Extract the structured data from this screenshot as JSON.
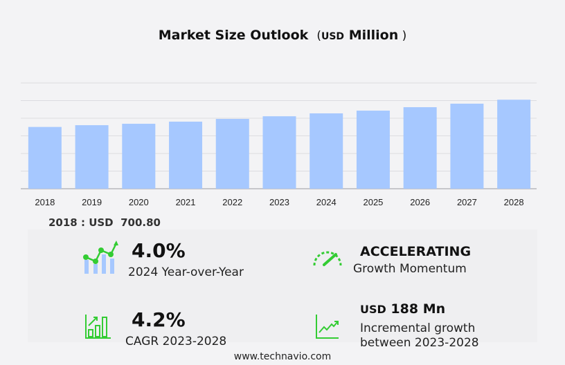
{
  "chart_data": {
    "type": "bar",
    "title": "Market Size Outlook",
    "unit_prefix": "USD",
    "unit": "Million",
    "categories": [
      "2018",
      "2019",
      "2020",
      "2021",
      "2022",
      "2023",
      "2024",
      "2025",
      "2026",
      "2027",
      "2028"
    ],
    "values": [
      700.8,
      721,
      737,
      761,
      792,
      822,
      855,
      886,
      925,
      965,
      1010
    ],
    "ylim": [
      0,
      1200
    ],
    "grid": true,
    "y_tick_labels_shown": false,
    "bar_color": "#a6c8ff"
  },
  "base_value": {
    "label": "2018 : USD",
    "value": "700.80"
  },
  "stats": {
    "yoy": {
      "value": "4.0%",
      "label": "2024 Year-over-Year"
    },
    "momentum": {
      "value": "ACCELERATING",
      "label": "Growth Momentum"
    },
    "cagr": {
      "value": "4.2%",
      "label": "CAGR 2023-2028"
    },
    "incremental": {
      "prefix": "USD",
      "value": "188 Mn",
      "label1": "Incremental growth",
      "label2": "between 2023-2028"
    }
  },
  "accent_color": "#33cc33",
  "footer": "www.technavio.com"
}
